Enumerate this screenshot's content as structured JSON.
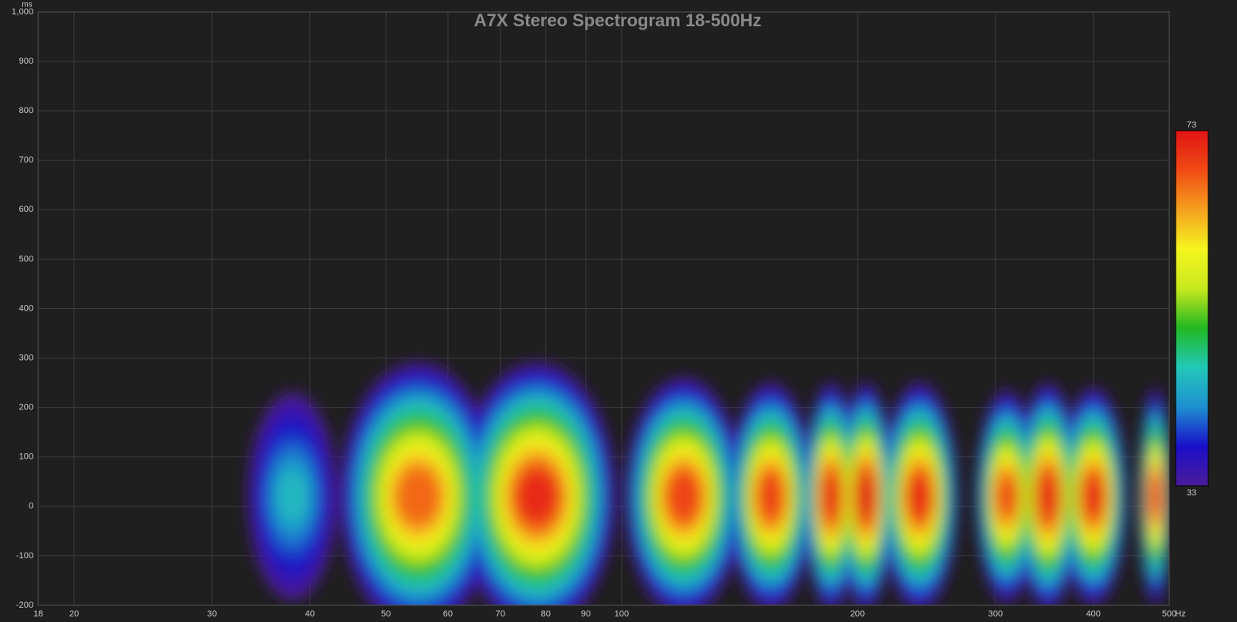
{
  "chart_data": {
    "type": "spectrogram",
    "title": "A7X Stereo Spectrogram 18-500Hz",
    "x_unit": "Hz",
    "y_unit": "ms",
    "xlim": [
      18,
      500
    ],
    "xticks": [
      18,
      20,
      30,
      40,
      50,
      60,
      70,
      80,
      90,
      100,
      200,
      300,
      400,
      500
    ],
    "log_x": true,
    "ylim": [
      -200,
      1000
    ],
    "yticks": [
      -200,
      -100,
      0,
      100,
      200,
      300,
      400,
      500,
      600,
      700,
      800,
      900,
      {
        "value": 1000,
        "label": "1,000"
      }
    ],
    "grid": true,
    "zlim": [
      33,
      73
    ],
    "colormap": [
      "#4b1a9a",
      "#1a10c8",
      "#1e8fd0",
      "#22c8b8",
      "#22b822",
      "#c8e81e",
      "#f5f51e",
      "#f5a01e",
      "#f04a14",
      "#e01414"
    ],
    "x": [
      38,
      55,
      78,
      120,
      155,
      185,
      205,
      240,
      310,
      350,
      400,
      480
    ],
    "values": [
      46,
      68,
      71,
      70,
      70,
      72,
      73,
      71,
      69,
      72,
      71,
      69
    ],
    "extent": [
      230,
      290,
      290,
      260,
      250,
      250,
      250,
      250,
      235,
      250,
      240,
      240
    ]
  }
}
